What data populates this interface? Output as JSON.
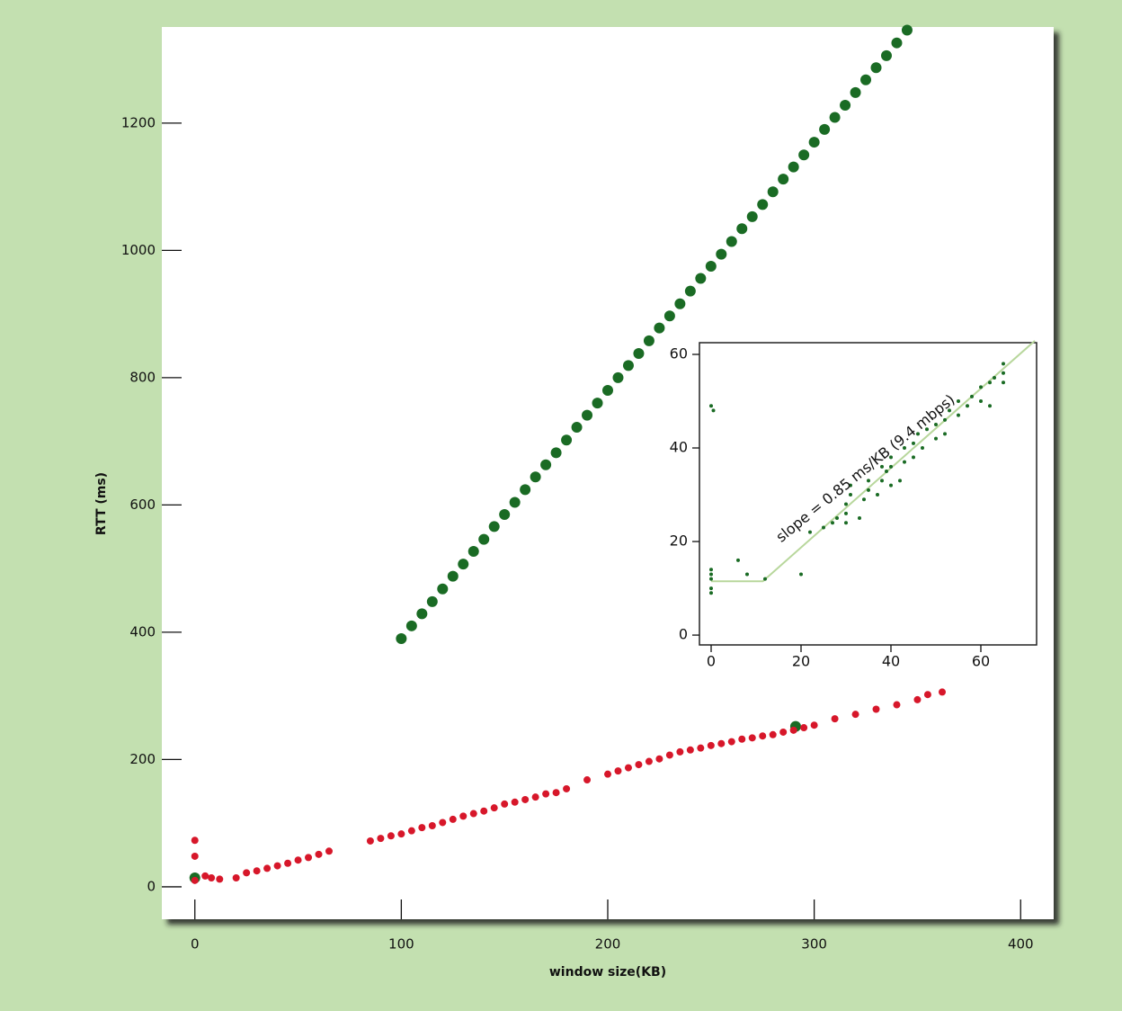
{
  "chart_data": [
    {
      "type": "scatter",
      "x_label": "window size(KB)",
      "y_label": "RTT (ms)",
      "xlim": [
        -16,
        416
      ],
      "ylim": [
        -51,
        1351
      ],
      "xticks": [
        0,
        100,
        200,
        300,
        400
      ],
      "yticks": [
        0,
        200,
        400,
        600,
        800,
        1000,
        1200
      ],
      "series": [
        {
          "color": "#1a6b24",
          "x": [
            0,
            291,
            100,
            105,
            110,
            115,
            120,
            125,
            130,
            135,
            140,
            145,
            150,
            155,
            160,
            165,
            170,
            175,
            180,
            185,
            190,
            195,
            200,
            205,
            210,
            215,
            220,
            225,
            230,
            235,
            240,
            245,
            250,
            255,
            260,
            265,
            270,
            275,
            280,
            285,
            290,
            295,
            300,
            305,
            310,
            315,
            320,
            325,
            330,
            335,
            340,
            345
          ],
          "y": [
            14,
            252,
            390,
            410,
            429,
            448,
            468,
            488,
            507,
            527,
            546,
            566,
            585,
            604,
            624,
            644,
            663,
            682,
            702,
            722,
            741,
            760,
            780,
            800,
            819,
            838,
            858,
            878,
            897,
            916,
            936,
            956,
            975,
            994,
            1014,
            1034,
            1053,
            1072,
            1092,
            1112,
            1131,
            1150,
            1170,
            1190,
            1209,
            1228,
            1248,
            1268,
            1287,
            1306,
            1326,
            1346
          ]
        },
        {
          "color": "#d7172a",
          "x": [
            0,
            0,
            0,
            5,
            8,
            12,
            20,
            25,
            30,
            35,
            40,
            45,
            50,
            55,
            60,
            65,
            85,
            90,
            95,
            100,
            105,
            110,
            115,
            120,
            125,
            130,
            135,
            140,
            145,
            150,
            155,
            160,
            165,
            170,
            175,
            180,
            190,
            200,
            205,
            210,
            215,
            220,
            225,
            230,
            235,
            240,
            245,
            250,
            255,
            260,
            265,
            270,
            275,
            280,
            285,
            290,
            295,
            300,
            310,
            320,
            330,
            340,
            350,
            355,
            362
          ],
          "y": [
            73,
            48,
            10,
            17,
            14,
            12,
            14,
            22,
            25,
            29,
            33,
            37,
            42,
            46,
            51,
            56,
            72,
            76,
            80,
            83,
            88,
            93,
            96,
            101,
            106,
            111,
            115,
            119,
            124,
            130,
            133,
            137,
            141,
            146,
            148,
            154,
            168,
            177,
            182,
            187,
            192,
            197,
            201,
            207,
            212,
            215,
            218,
            222,
            225,
            228,
            232,
            234,
            237,
            239,
            243,
            246,
            250,
            254,
            264,
            271,
            279,
            286,
            294,
            302,
            306
          ]
        }
      ]
    },
    {
      "type": "scatter",
      "annotation": "slope = 0.85 ms/KB (9.4 mbps)",
      "xlim": [
        -2.6,
        72.4
      ],
      "ylim": [
        -2.1,
        62.5
      ],
      "xticks": [
        0,
        20,
        40,
        60
      ],
      "yticks": [
        0,
        20,
        40,
        60
      ],
      "series": [
        {
          "color": "#1a6b24",
          "x": [
            0,
            0,
            0,
            0,
            0,
            0,
            0.5,
            6,
            8,
            12,
            20,
            22,
            25,
            27,
            28,
            30,
            30,
            30,
            31,
            31,
            33,
            34,
            35,
            35,
            37,
            38,
            38,
            39,
            40,
            40,
            40,
            42,
            43,
            43,
            45,
            45,
            46,
            47,
            48,
            50,
            50,
            52,
            52,
            53,
            55,
            55,
            57,
            58,
            60,
            60,
            62,
            62,
            63,
            65,
            65,
            65
          ],
          "y": [
            9,
            10,
            12,
            13,
            14,
            49,
            48,
            16,
            13,
            12,
            13,
            22,
            23,
            24,
            25,
            24,
            26,
            28,
            30,
            32,
            25,
            29,
            31,
            33,
            30,
            33,
            36,
            35,
            32,
            36,
            38,
            33,
            37,
            40,
            38,
            41,
            43,
            40,
            44,
            42,
            45,
            43,
            46,
            48,
            47,
            50,
            49,
            51,
            50,
            53,
            49,
            54,
            55,
            54,
            56,
            58
          ]
        }
      ],
      "fit": {
        "color": "#b8d79c",
        "x": [
          0,
          11.5,
          72
        ],
        "y": [
          11.5,
          11.5,
          62.9
        ]
      }
    }
  ]
}
